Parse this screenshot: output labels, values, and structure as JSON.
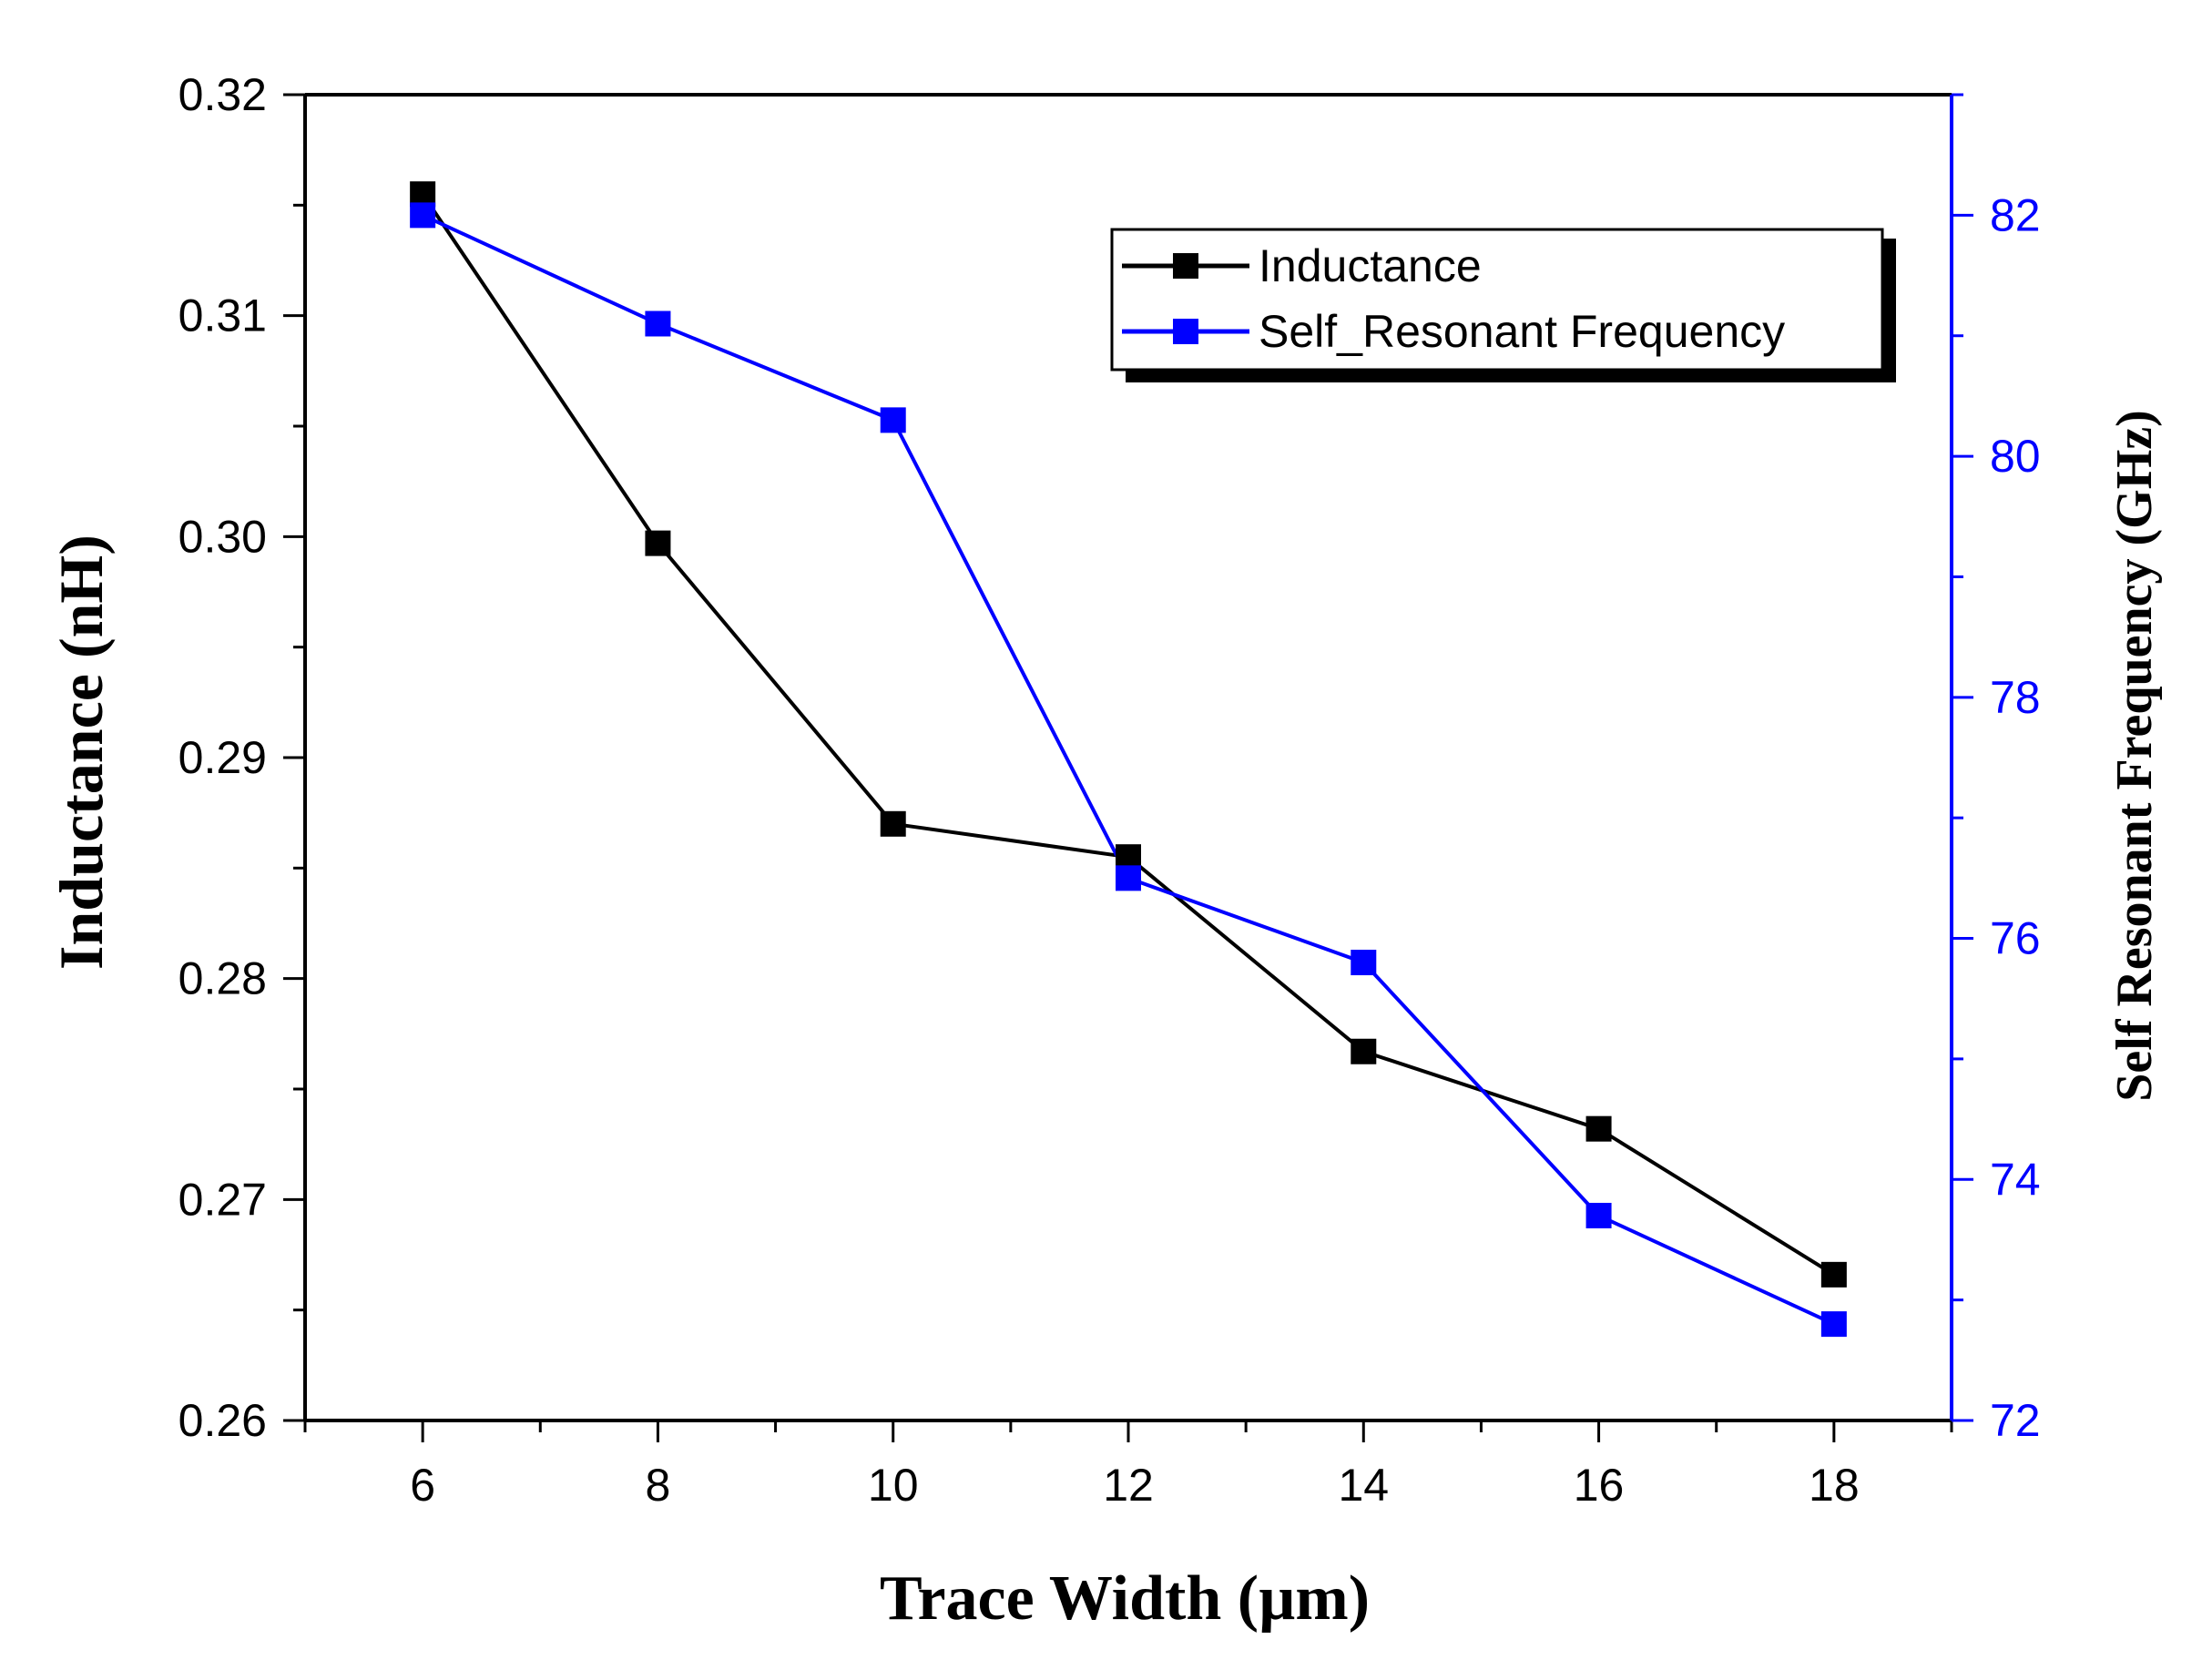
{
  "chart_data": {
    "type": "line",
    "title": "",
    "xlabel": "Trace Width (µm)",
    "ylabel": "Inductance (nH)",
    "y2label": "Self Resonant Frequency (GHz)",
    "xlim": [
      5,
      19
    ],
    "ylim": [
      0.26,
      0.32
    ],
    "y2lim": [
      72,
      83
    ],
    "xticks": [
      6,
      8,
      10,
      12,
      14,
      16,
      18
    ],
    "yticks": [
      "0.26",
      "0.27",
      "0.28",
      "0.29",
      "0.30",
      "0.31",
      "0.32"
    ],
    "y2ticks": [
      "72",
      "74",
      "76",
      "78",
      "80",
      "82"
    ],
    "x": [
      6,
      8,
      10,
      12,
      14,
      16,
      18
    ],
    "series": [
      {
        "name": "Inductance",
        "axis": "left",
        "color": "#000000",
        "values": [
          0.3155,
          0.2997,
          0.287,
          0.2855,
          0.2767,
          0.2732,
          0.2666
        ]
      },
      {
        "name": "Self_Resonant Frequency",
        "axis": "right",
        "color": "#0000ff",
        "values": [
          82.0,
          81.1,
          80.3,
          76.5,
          75.8,
          73.7,
          72.8
        ]
      }
    ],
    "legend_position": "top-right"
  }
}
